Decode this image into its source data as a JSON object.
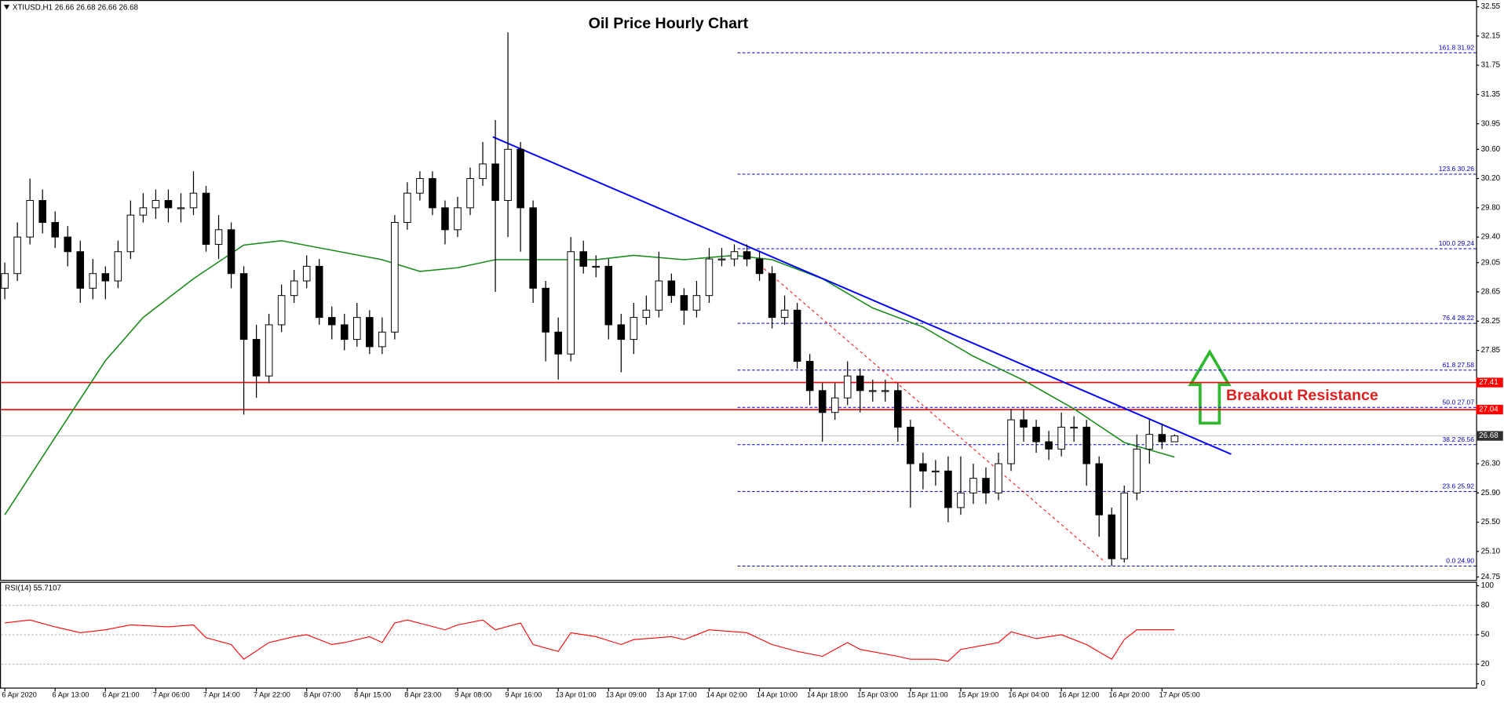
{
  "chart_data": {
    "type": "candlestick",
    "title": "Oil Price Hourly Chart",
    "symbol_info": "XTIUSD,H1  26.66 26.68 26.66 26.68",
    "categories": [
      "6 Apr 2020",
      null,
      null,
      null,
      "6 Apr 13:00",
      null,
      null,
      null,
      "6 Apr 21:00",
      null,
      null,
      null,
      "7 Apr 06:00",
      null,
      null,
      null,
      "7 Apr 14:00",
      null,
      null,
      null,
      "7 Apr 22:00",
      null,
      null,
      null,
      "8 Apr 07:00",
      null,
      null,
      null,
      "8 Apr 15:00",
      null,
      null,
      null,
      "8 Apr 23:00",
      null,
      null,
      null,
      "9 Apr 08:00",
      null,
      null,
      null,
      "9 Apr 16:00",
      null,
      null,
      null,
      "13 Apr 01:00",
      null,
      null,
      null,
      "13 Apr 09:00",
      null,
      null,
      null,
      "13 Apr 17:00",
      null,
      null,
      null,
      "14 Apr 02:00",
      null,
      null,
      null,
      "14 Apr 10:00",
      null,
      null,
      null,
      "14 Apr 18:00",
      null,
      null,
      null,
      "15 Apr 03:00",
      null,
      null,
      null,
      "15 Apr 11:00",
      null,
      null,
      null,
      "15 Apr 19:00",
      null,
      null,
      null,
      "16 Apr 04:00",
      null,
      null,
      null,
      "16 Apr 12:00",
      null,
      null,
      null,
      "16 Apr 20:00",
      null,
      null,
      null,
      "17 Apr 05:00",
      null
    ],
    "open": [
      28.7,
      28.9,
      29.4,
      29.9,
      29.6,
      29.4,
      29.2,
      28.7,
      28.9,
      28.8,
      29.2,
      29.7,
      29.8,
      29.9,
      29.8,
      29.8,
      30.0,
      29.3,
      29.5,
      28.9,
      28.0,
      27.5,
      28.2,
      28.6,
      28.8,
      29.0,
      28.3,
      28.2,
      28.0,
      28.3,
      27.9,
      28.1,
      29.6,
      30.0,
      30.2,
      29.8,
      29.5,
      29.8,
      30.2,
      30.4,
      29.9,
      30.6,
      29.8,
      28.7,
      28.1,
      27.8,
      29.2,
      29.0,
      29.0,
      28.2,
      28.0,
      28.3,
      28.4,
      28.8,
      28.6,
      28.4,
      28.6,
      29.1,
      29.1,
      29.2,
      29.1,
      28.9,
      28.3,
      28.4,
      27.7,
      27.3,
      27.0,
      27.2,
      27.5,
      27.3,
      27.3,
      27.3,
      26.8,
      26.3,
      26.2,
      26.2,
      25.7,
      25.9,
      26.1,
      25.9,
      26.3,
      26.9,
      26.8,
      26.6,
      26.5,
      26.8,
      26.8,
      26.3,
      25.6,
      25.0,
      25.9,
      26.5,
      26.7,
      26.6
    ],
    "high": [
      29.05,
      29.6,
      30.2,
      30.05,
      29.75,
      29.55,
      29.35,
      29.1,
      29.0,
      29.35,
      29.9,
      30.0,
      30.05,
      30.05,
      30.0,
      30.3,
      30.1,
      29.7,
      29.6,
      29.0,
      28.2,
      28.35,
      28.75,
      28.95,
      29.15,
      29.1,
      28.45,
      28.35,
      28.5,
      28.4,
      28.3,
      29.7,
      30.15,
      30.3,
      30.3,
      29.9,
      29.95,
      30.35,
      30.7,
      31.0,
      32.2,
      30.7,
      29.9,
      28.8,
      28.3,
      29.4,
      29.35,
      29.15,
      29.1,
      28.35,
      28.5,
      28.6,
      29.2,
      28.9,
      28.7,
      28.8,
      29.25,
      29.25,
      29.3,
      29.3,
      29.2,
      29.0,
      28.6,
      28.5,
      27.8,
      27.4,
      27.4,
      27.7,
      27.6,
      27.45,
      27.45,
      27.4,
      26.9,
      26.45,
      26.35,
      26.4,
      26.4,
      26.3,
      26.25,
      26.45,
      27.05,
      27.05,
      26.9,
      26.75,
      27.0,
      26.95,
      26.9,
      26.4,
      25.7,
      26.0,
      26.7,
      26.9,
      26.85,
      26.7
    ],
    "low": [
      28.55,
      28.8,
      29.3,
      29.45,
      29.25,
      29.0,
      28.5,
      28.55,
      28.55,
      28.7,
      29.1,
      29.6,
      29.65,
      29.6,
      29.6,
      29.7,
      29.2,
      29.1,
      28.7,
      26.97,
      27.2,
      27.4,
      28.1,
      28.5,
      28.7,
      28.2,
      28.0,
      27.85,
      27.9,
      27.8,
      27.8,
      28.0,
      29.5,
      29.9,
      29.7,
      29.3,
      29.4,
      29.7,
      30.1,
      28.65,
      29.4,
      29.2,
      28.5,
      27.7,
      27.45,
      27.7,
      28.9,
      28.85,
      28.0,
      27.55,
      27.8,
      28.2,
      28.3,
      28.5,
      28.2,
      28.3,
      28.5,
      29.0,
      29.0,
      29.0,
      28.8,
      28.15,
      28.2,
      27.6,
      27.1,
      26.6,
      26.9,
      27.1,
      27.0,
      27.15,
      27.15,
      26.6,
      25.7,
      25.95,
      26.0,
      25.5,
      25.6,
      25.75,
      25.75,
      25.8,
      26.2,
      26.6,
      26.45,
      26.35,
      26.4,
      26.6,
      26.0,
      25.3,
      24.9,
      24.95,
      25.8,
      26.3,
      26.5,
      26.6
    ],
    "close": [
      28.9,
      29.4,
      29.9,
      29.6,
      29.4,
      29.2,
      28.7,
      28.9,
      28.8,
      29.2,
      29.7,
      29.8,
      29.9,
      29.8,
      29.8,
      30.0,
      29.3,
      29.5,
      28.9,
      28.0,
      27.5,
      28.2,
      28.6,
      28.8,
      29.0,
      28.3,
      28.2,
      28.0,
      28.3,
      27.9,
      28.1,
      29.6,
      30.0,
      30.2,
      29.8,
      29.5,
      29.8,
      30.2,
      30.4,
      29.9,
      30.6,
      29.8,
      28.7,
      28.1,
      27.8,
      29.2,
      29.0,
      29.0,
      28.2,
      28.0,
      28.3,
      28.4,
      28.8,
      28.6,
      28.4,
      28.6,
      29.1,
      29.1,
      29.2,
      29.1,
      28.9,
      28.3,
      28.4,
      27.7,
      27.3,
      27.0,
      27.2,
      27.5,
      27.3,
      27.3,
      27.3,
      26.8,
      26.3,
      26.2,
      26.2,
      25.7,
      25.9,
      26.1,
      25.9,
      26.3,
      26.9,
      26.8,
      26.6,
      26.5,
      26.8,
      26.8,
      26.3,
      25.6,
      25.0,
      25.9,
      26.5,
      26.7,
      26.6,
      26.68
    ],
    "ylim": [
      24.75,
      32.55
    ],
    "yticks": [
      32.55,
      32.15,
      31.75,
      31.35,
      30.95,
      {
        "value": 30.6,
        "label": "30.60"
      },
      {
        "value": 30.2,
        "label": "30.20"
      },
      {
        "value": 29.8,
        "label": "29.80"
      },
      {
        "value": 29.4,
        "label": "29.40"
      },
      29.05,
      28.65,
      28.25,
      27.85,
      {
        "value": 26.3,
        "label": "26.30"
      },
      {
        "value": 25.9,
        "label": "25.90"
      },
      {
        "value": 25.5,
        "label": "25.50"
      },
      {
        "value": 25.1,
        "label": "25.10"
      },
      24.75
    ],
    "ma": {
      "color": "#1a8c1a",
      "x": [
        0,
        4,
        8,
        11,
        15,
        19,
        22,
        26,
        30,
        33,
        36,
        39,
        43,
        47,
        50,
        54,
        58,
        61,
        65,
        69,
        73,
        77,
        81,
        85,
        89,
        93
      ],
      "values": [
        25.6,
        26.66,
        27.71,
        28.3,
        28.83,
        29.29,
        29.35,
        29.22,
        29.09,
        28.93,
        28.98,
        29.09,
        29.09,
        29.09,
        29.15,
        29.09,
        29.15,
        29.09,
        28.83,
        28.43,
        28.17,
        27.77,
        27.44,
        27.05,
        26.59,
        26.39
      ]
    },
    "trendlines": [
      {
        "color": "#0000ff",
        "dashed": false,
        "x": [
          38.8,
          97.5
        ],
        "y": [
          30.77,
          26.43
        ]
      },
      {
        "color": "#ff0000",
        "dashed": true,
        "x": [
          60,
          87.5
        ],
        "y": [
          29.02,
          24.95
        ]
      }
    ],
    "fib_levels": [
      {
        "label": "161.8 31.92",
        "value": 31.92
      },
      {
        "label": "123.6 30.26",
        "value": 30.26
      },
      {
        "label": "100.0 29.24",
        "value": 29.24
      },
      {
        "label": "76.4 28.22",
        "value": 28.22
      },
      {
        "label": "61.8 27.58",
        "value": 27.58
      },
      {
        "label": "50.0 27.07",
        "value": 27.07
      },
      {
        "label": "38.2 26.56",
        "value": 26.56
      },
      {
        "label": "23.6 25.92",
        "value": 25.92
      },
      {
        "label": "0.0 24.90",
        "value": 24.9
      }
    ],
    "price_levels": [
      {
        "value": 27.41,
        "color": "#ff0000"
      },
      {
        "value": 27.04,
        "color": "#ff0000"
      },
      {
        "value": 26.68,
        "color": "#c0c0c0"
      }
    ],
    "annotation": {
      "text": "Breakout Resistance",
      "color": "#e02020"
    },
    "rsi": {
      "label": "RSI(14) 55.7107",
      "color": "#ff0000",
      "ylim": [
        0,
        100
      ],
      "yticks": [
        100,
        80,
        50,
        20,
        0
      ],
      "x": [
        0,
        2,
        4,
        6,
        8,
        10,
        13,
        15,
        16,
        18,
        19,
        21,
        23,
        24,
        26,
        27,
        29,
        30,
        31,
        32,
        35,
        36,
        38,
        39,
        41,
        42,
        44,
        45,
        47,
        49,
        50,
        53,
        54,
        56,
        59,
        61,
        63,
        65,
        67,
        68,
        71,
        72,
        74,
        75,
        76,
        79,
        80,
        82,
        84,
        86,
        88,
        89,
        90,
        93
      ],
      "values": [
        62,
        65,
        58,
        52,
        55,
        60,
        58,
        60,
        47,
        40,
        25,
        42,
        48,
        50,
        40,
        42,
        48,
        42,
        62,
        65,
        55,
        60,
        65,
        55,
        62,
        40,
        33,
        52,
        48,
        40,
        45,
        48,
        45,
        55,
        52,
        40,
        33,
        28,
        42,
        35,
        28,
        25,
        25,
        23,
        35,
        42,
        53,
        46,
        50,
        40,
        25,
        45,
        55,
        55
      ]
    }
  }
}
